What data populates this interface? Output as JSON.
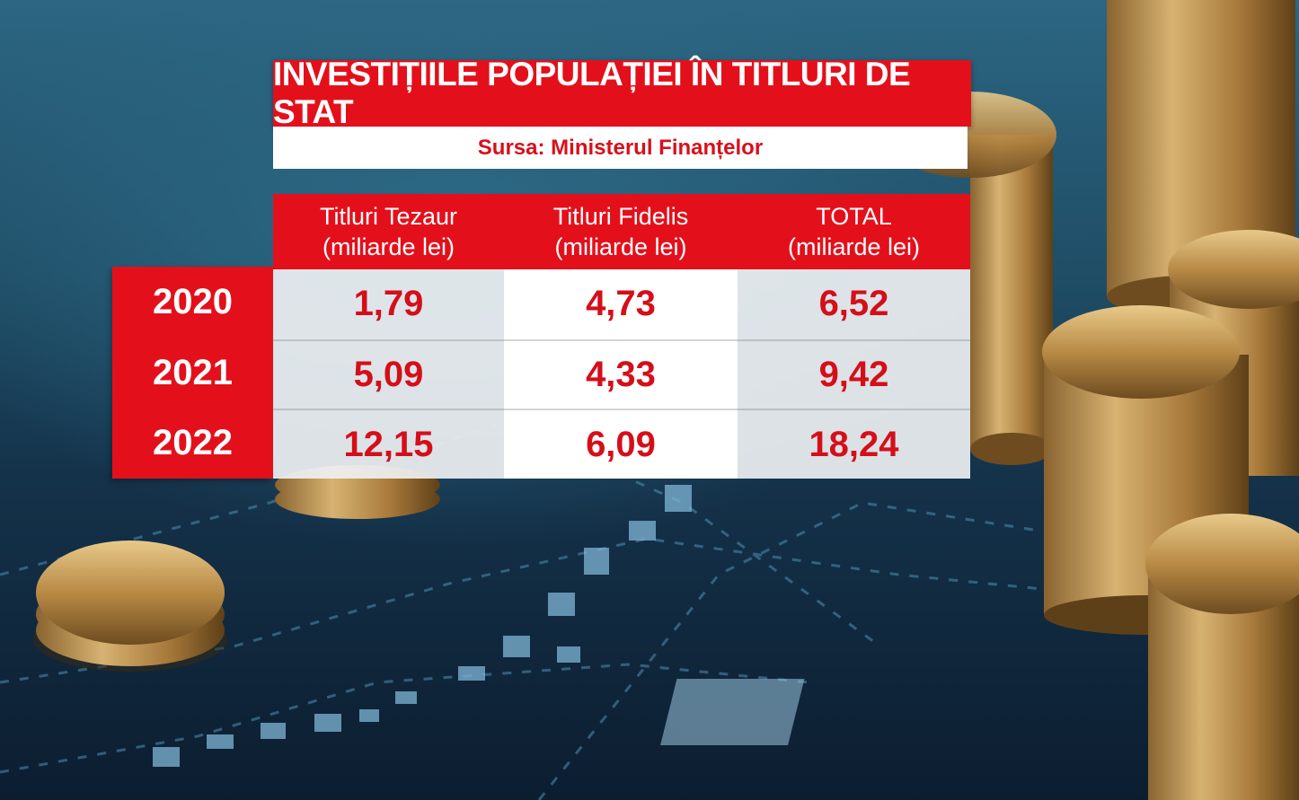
{
  "title": "INVESTIȚIILE POPULAȚIEI ÎN TITLURI DE STAT",
  "source": "Sursa: Ministerul Finanțelor",
  "table": {
    "headers": [
      {
        "line1": "Titluri Tezaur",
        "line2": "(miliarde lei)"
      },
      {
        "line1": "Titluri Fidelis",
        "line2": "(miliarde lei)"
      },
      {
        "line1": "TOTAL",
        "line2": "(miliarde lei)"
      }
    ],
    "rows": [
      {
        "year": "2020",
        "values": [
          "1,79",
          "4,73",
          "6,52"
        ]
      },
      {
        "year": "2021",
        "values": [
          "5,09",
          "4,33",
          "9,42"
        ]
      },
      {
        "year": "2022",
        "values": [
          "12,15",
          "6,09",
          "18,24"
        ]
      }
    ]
  },
  "colors": {
    "accent_red": "#e3101b",
    "value_red": "#d40f1a",
    "background_blue": "#1f4d66"
  }
}
